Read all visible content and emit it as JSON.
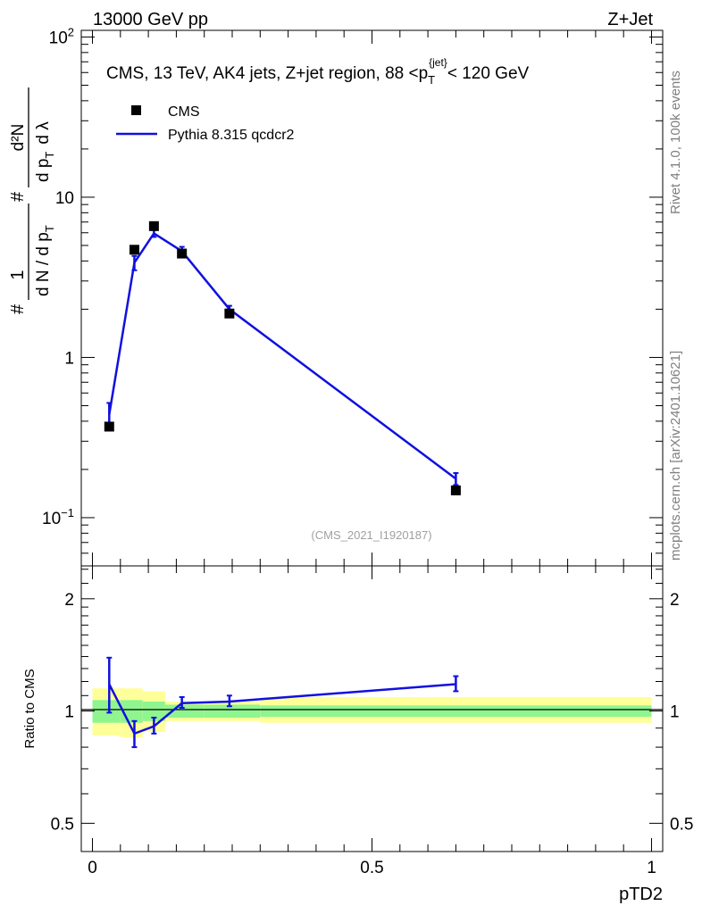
{
  "header": {
    "left_label": "13000 GeV pp",
    "right_label": "Z+Jet"
  },
  "side_labels": {
    "rivet": "Rivet 4.1.0,  100k events",
    "mcplots": "mcplots.cern.ch [arXiv:2401.10621]"
  },
  "colors": {
    "mc_line": "#1010e0",
    "data_marker": "#000000",
    "band_inner": "#8ff58f",
    "band_outer": "#ffff99"
  },
  "chart_data": [
    {
      "panel": "main",
      "type": "line",
      "title": "CMS, 13 TeV, AK4 jets, Z+jet region, 88 <p_T^{jet}< 120 GeV",
      "title_parts": {
        "prefix": "CMS, 13 TeV, AK4 jets, Z+jet region, 88 <p",
        "sub": "T",
        "sup": "{jet}",
        "suffix": "< 120 GeV"
      },
      "ylabel_parts": {
        "hash": "#",
        "frac_num": "1",
        "frac_den": "d N / d p",
        "frac_den_sub": "T",
        "rhs_num": "d²N",
        "rhs_den": "d p",
        "rhs_den_sub": "T",
        "rhs_tail": "d λ"
      },
      "watermark": "(CMS_2021_I1920187)",
      "yscale": "log",
      "ylim": [
        0.05,
        110
      ],
      "xlim": [
        -0.02,
        1.02
      ],
      "yticks": [
        {
          "value": 0.1,
          "base": "10",
          "exp": "−1"
        },
        {
          "value": 1,
          "label": "1"
        },
        {
          "value": 10,
          "label": "10"
        },
        {
          "value": 100,
          "base": "10",
          "exp": "2"
        }
      ],
      "legend_position": "top-left",
      "series": [
        {
          "name": "CMS",
          "kind": "markers",
          "x": [
            0.03,
            0.075,
            0.11,
            0.16,
            0.245,
            0.65
          ],
          "y": [
            0.37,
            4.7,
            6.6,
            4.45,
            1.88,
            0.148
          ]
        },
        {
          "name": "Pythia 8.315 qcdcr2",
          "kind": "line",
          "x": [
            0.03,
            0.075,
            0.11,
            0.16,
            0.245,
            0.65
          ],
          "y": [
            0.44,
            3.9,
            5.95,
            4.6,
            2.0,
            0.175
          ],
          "err_lo": [
            0.36,
            3.5,
            5.65,
            4.3,
            1.9,
            0.16
          ],
          "err_hi": [
            0.52,
            4.3,
            6.25,
            4.9,
            2.1,
            0.19
          ]
        }
      ]
    },
    {
      "panel": "ratio",
      "type": "line",
      "ylabel": "Ratio to CMS",
      "xlabel": "pTD2",
      "ylim": [
        0.42,
        2.45
      ],
      "xlim": [
        -0.02,
        1.02
      ],
      "yticks": [
        {
          "value": 0.5,
          "label": "0.5"
        },
        {
          "value": 1,
          "label": "1"
        },
        {
          "value": 2,
          "label": "2"
        }
      ],
      "xticks": [
        {
          "value": 0,
          "label": "0"
        },
        {
          "value": 0.5,
          "label": "0.5"
        },
        {
          "value": 1,
          "label": "1"
        }
      ],
      "bands": [
        {
          "x0": 0.0,
          "x1": 0.05,
          "inner": [
            0.93,
            1.07
          ],
          "outer": [
            0.86,
            1.15
          ]
        },
        {
          "x0": 0.05,
          "x1": 0.09,
          "inner": [
            0.93,
            1.07
          ],
          "outer": [
            0.85,
            1.15
          ]
        },
        {
          "x0": 0.09,
          "x1": 0.13,
          "inner": [
            0.94,
            1.06
          ],
          "outer": [
            0.88,
            1.13
          ]
        },
        {
          "x0": 0.13,
          "x1": 0.2,
          "inner": [
            0.96,
            1.04
          ],
          "outer": [
            0.94,
            1.06
          ]
        },
        {
          "x0": 0.2,
          "x1": 0.3,
          "inner": [
            0.96,
            1.04
          ],
          "outer": [
            0.94,
            1.06
          ]
        },
        {
          "x0": 0.3,
          "x1": 1.0,
          "inner": [
            0.965,
            1.035
          ],
          "outer": [
            0.93,
            1.09
          ]
        }
      ],
      "series": [
        {
          "name": "Pythia 8.315 qcdcr2 / CMS",
          "x": [
            0.03,
            0.075,
            0.11,
            0.16,
            0.245,
            0.65
          ],
          "y": [
            1.18,
            0.87,
            0.91,
            1.05,
            1.06,
            1.18
          ],
          "err_lo": [
            0.99,
            0.8,
            0.87,
            1.02,
            1.03,
            1.13
          ],
          "err_hi": [
            1.39,
            0.94,
            0.96,
            1.09,
            1.1,
            1.24
          ]
        }
      ]
    }
  ]
}
